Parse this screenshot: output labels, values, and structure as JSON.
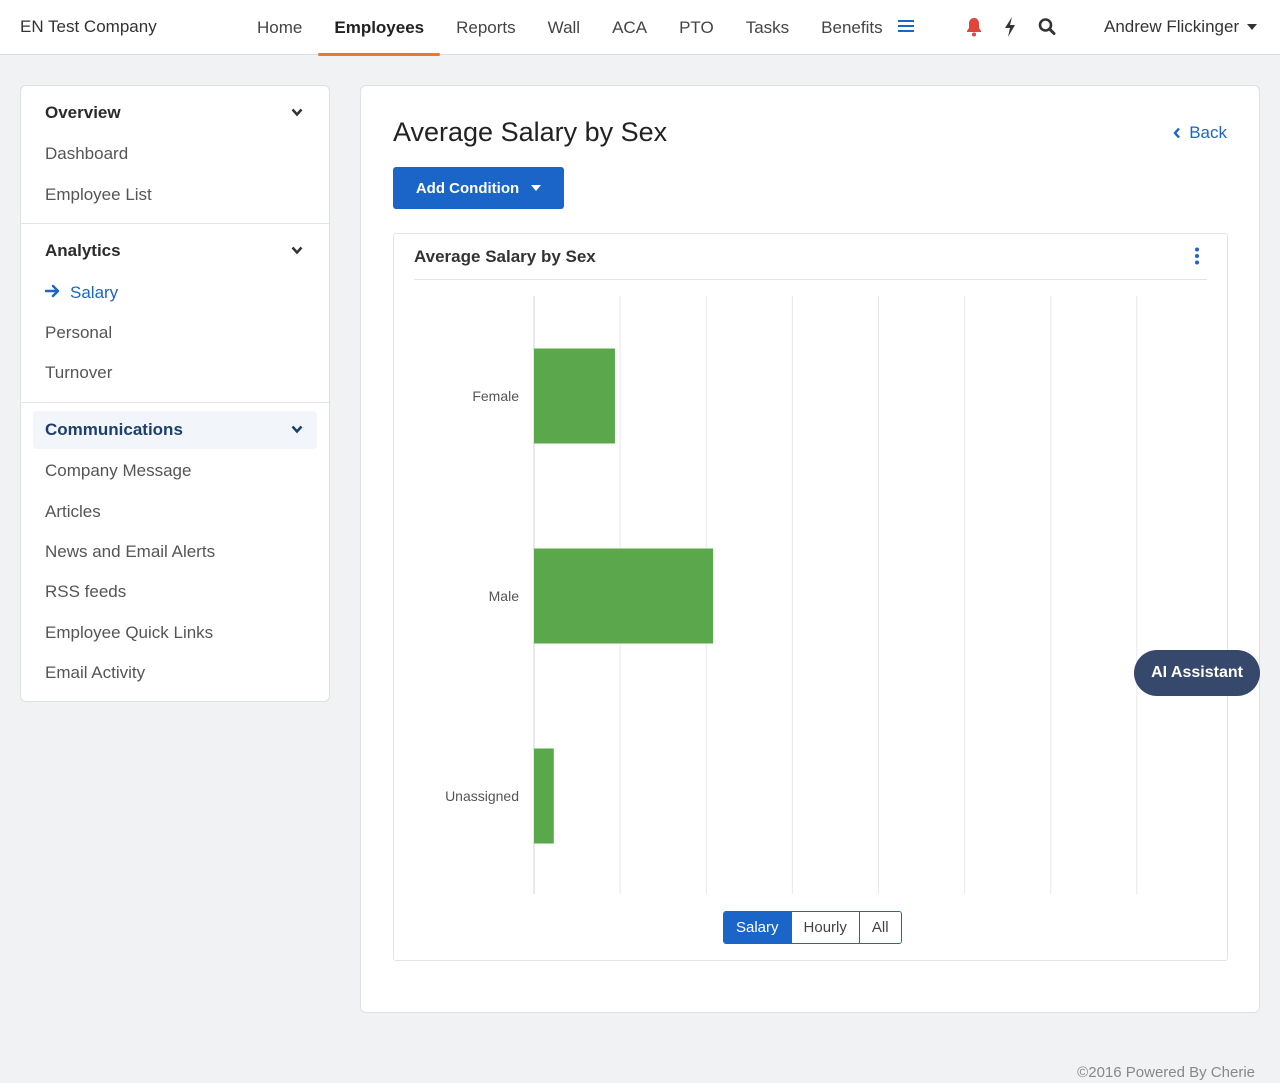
{
  "brand": "EN Test Company",
  "nav": {
    "items": [
      "Home",
      "Employees",
      "Reports",
      "Wall",
      "ACA",
      "PTO",
      "Tasks",
      "Benefits"
    ],
    "active": "Employees",
    "user": "Andrew Flickinger"
  },
  "sidebar": {
    "sections": [
      {
        "title": "Overview",
        "links": [
          "Dashboard",
          "Employee List"
        ]
      },
      {
        "title": "Analytics",
        "links": [
          "Salary",
          "Personal",
          "Turnover"
        ]
      },
      {
        "title": "Communications",
        "links": [
          "Company Message",
          "Articles",
          "News and Email Alerts",
          "RSS feeds",
          "Employee Quick Links",
          "Email Activity"
        ]
      }
    ],
    "active_link": "Salary"
  },
  "main": {
    "title": "Average Salary by Sex",
    "back_label": "Back",
    "add_condition_label": "Add Condition",
    "chart_card_title": "Average Salary by Sex",
    "toggle": {
      "options": [
        "Salary",
        "Hourly",
        "All"
      ],
      "selected": "Salary"
    }
  },
  "chart_data": {
    "type": "bar",
    "orientation": "horizontal",
    "categories": [
      "Female",
      "Male",
      "Unassigned"
    ],
    "values": [
      0.94,
      2.08,
      0.23
    ],
    "xlim": [
      0,
      8
    ],
    "grid": true,
    "color": "#5ba84c"
  },
  "colors": {
    "accent": "#1a65c7",
    "nav_underline": "#e8792d",
    "bar": "#5ba84c",
    "ai_button": "#36486b"
  },
  "ai_assistant_label": "AI Assistant",
  "footer": "©2016 Powered By Cherie"
}
